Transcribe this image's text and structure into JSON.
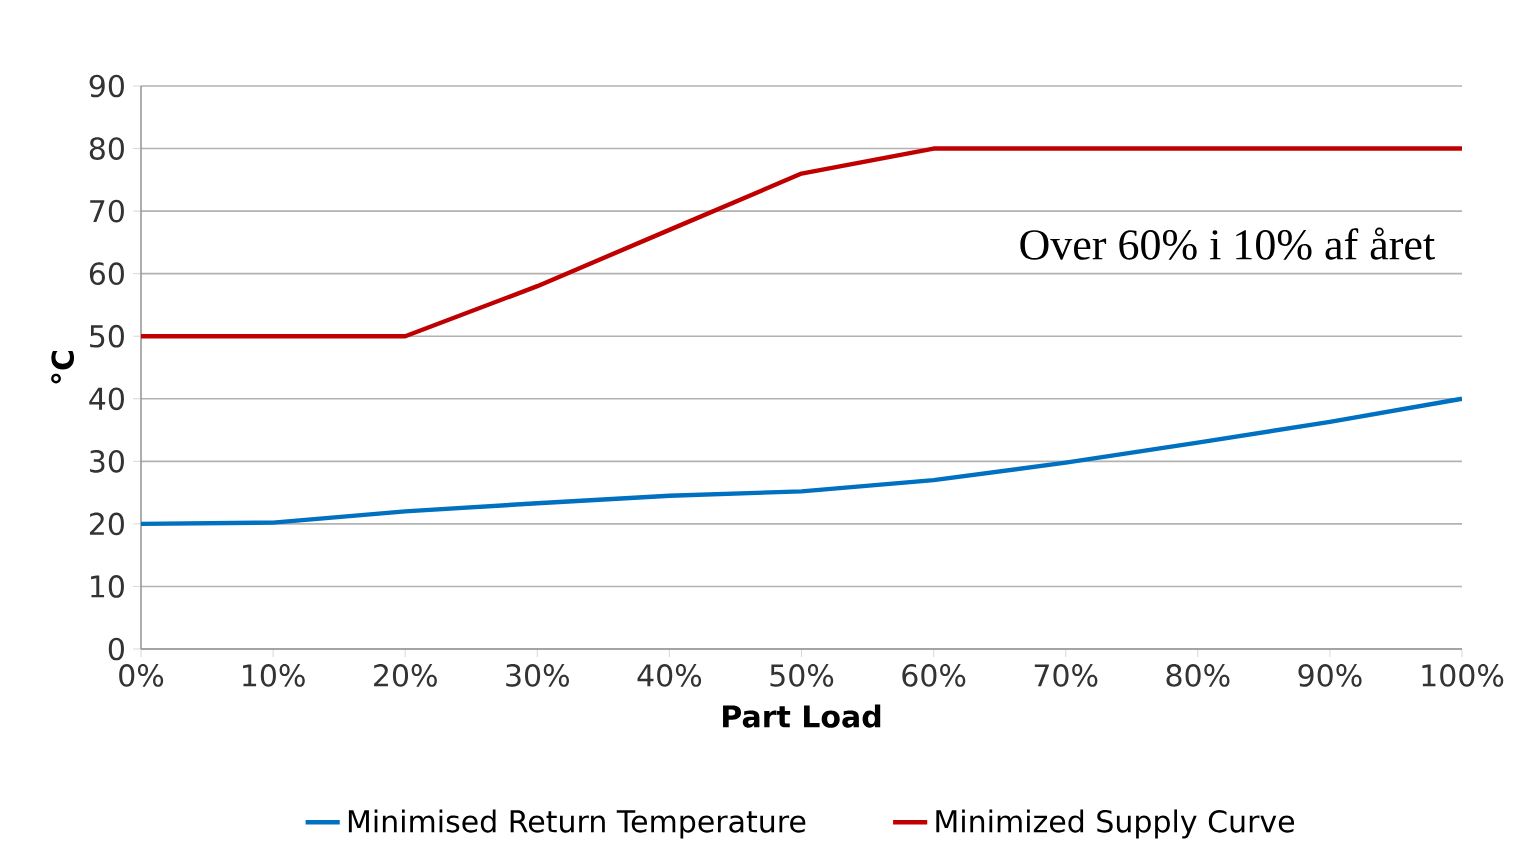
{
  "chart_data": {
    "type": "line",
    "xlabel": "Part Load",
    "ylabel": "°C",
    "x": [
      0,
      10,
      20,
      30,
      40,
      50,
      60,
      70,
      80,
      90,
      100
    ],
    "series": [
      {
        "name": "Minimised Return Temperature",
        "color": "#0070c0",
        "values": [
          20,
          20.2,
          22,
          23.3,
          24.5,
          25.2,
          27,
          29.8,
          33,
          36.3,
          40
        ]
      },
      {
        "name": "Minimized Supply Curve",
        "color": "#c00000",
        "values": [
          50,
          50,
          50,
          58,
          67,
          76,
          80,
          80,
          80,
          80,
          80
        ]
      }
    ],
    "xlim": [
      0,
      100
    ],
    "xticks": [
      {
        "value": 0,
        "label": "0%"
      },
      {
        "value": 10,
        "label": "10%"
      },
      {
        "value": 20,
        "label": "20%"
      },
      {
        "value": 30,
        "label": "30%"
      },
      {
        "value": 40,
        "label": "40%"
      },
      {
        "value": 50,
        "label": "50%"
      },
      {
        "value": 60,
        "label": "60%"
      },
      {
        "value": 70,
        "label": "70%"
      },
      {
        "value": 80,
        "label": "80%"
      },
      {
        "value": 90,
        "label": "90%"
      },
      {
        "value": 100,
        "label": "100%"
      }
    ],
    "ylim": [
      0,
      90
    ],
    "yticks": [
      0,
      10,
      20,
      30,
      40,
      50,
      60,
      70,
      80,
      90
    ],
    "grid": "y",
    "legend": "bottom",
    "annotations": [
      "Over 60% i 10% af året"
    ]
  }
}
